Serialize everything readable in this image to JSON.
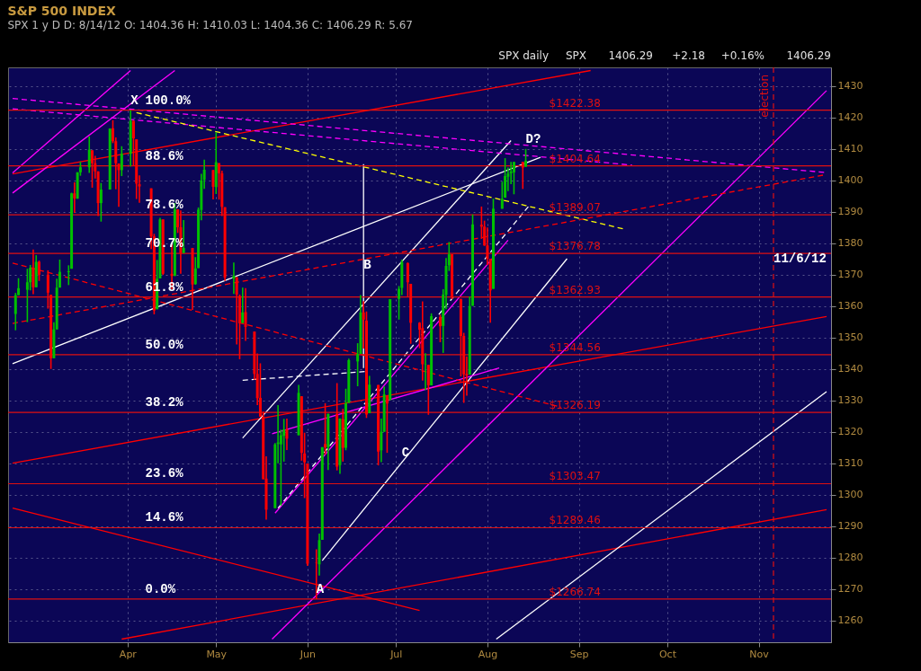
{
  "chart_data": {
    "type": "candlestick",
    "title": "S&P 500 INDEX",
    "subtitle": "SPX 1 y D   D: 8/14/12   O: 1404.36   H: 1410.03   L: 1404.36   C: 1406.29   R: 5.67",
    "x": [
      "--02-23",
      "--02-24",
      "--02-27",
      "--02-28",
      "--02-29",
      "--03-01",
      "--03-02",
      "--03-05",
      "--03-06",
      "--03-07",
      "--03-08",
      "--03-09",
      "--03-12",
      "--03-13",
      "--03-14",
      "--03-15",
      "--03-16",
      "--03-19",
      "--03-20",
      "--03-21",
      "--03-22",
      "--03-23",
      "--03-26",
      "--03-27",
      "--03-28",
      "--03-29",
      "--03-30",
      "--04-02",
      "--04-03",
      "--04-04",
      "--04-05",
      "--04-09",
      "--04-10",
      "--04-11",
      "--04-12",
      "--04-13",
      "--04-16",
      "--04-17",
      "--04-18",
      "--04-19",
      "--04-20",
      "--04-23",
      "--04-24",
      "--04-25",
      "--04-26",
      "--04-27",
      "--04-30",
      "--05-01",
      "--05-02",
      "--05-03",
      "--05-04",
      "--05-07",
      "--05-08",
      "--05-09",
      "--05-10",
      "--05-11",
      "--05-14",
      "--05-15",
      "--05-16",
      "--05-17",
      "--05-18",
      "--05-21",
      "--05-22",
      "--05-23",
      "--05-24",
      "--05-25",
      "--05-29",
      "--05-30",
      "--05-31",
      "--06-01",
      "--06-04",
      "--06-05",
      "--06-06",
      "--06-07",
      "--06-08",
      "--06-11",
      "--06-12",
      "--06-13",
      "--06-14",
      "--06-15",
      "--06-18",
      "--06-19",
      "--06-20",
      "--06-21",
      "--06-22",
      "--06-25",
      "--06-26",
      "--06-27",
      "--06-28",
      "--06-29",
      "--07-02",
      "--07-03",
      "--07-05",
      "--07-06",
      "--07-09",
      "--07-10",
      "--07-11",
      "--07-12",
      "--07-13",
      "--07-16",
      "--07-17",
      "--07-18",
      "--07-19",
      "--07-20",
      "--07-23",
      "--07-24",
      "--07-25",
      "--07-26",
      "--07-27",
      "--07-30",
      "--07-31",
      "--08-01",
      "--08-02",
      "--08-03",
      "--08-06",
      "--08-07",
      "--08-08",
      "--08-09",
      "--08-10",
      "--08-13",
      "--08-14"
    ],
    "ohlc": [
      [
        1357.5,
        1364.2,
        1352.3,
        1363.5
      ],
      [
        1363.5,
        1368.9,
        1363.5,
        1365.7
      ],
      [
        1365.2,
        1371.9,
        1354.9,
        1367.6
      ],
      [
        1367.6,
        1373.1,
        1365.0,
        1372.2
      ],
      [
        1372.2,
        1378.0,
        1363.8,
        1366.0
      ],
      [
        1366.0,
        1376.2,
        1366.0,
        1374.1
      ],
      [
        1374.1,
        1374.5,
        1368.0,
        1370.0
      ],
      [
        1370.0,
        1371.4,
        1359.2,
        1364.3
      ],
      [
        1363.6,
        1363.6,
        1340.0,
        1343.4
      ],
      [
        1343.4,
        1354.9,
        1343.4,
        1352.6
      ],
      [
        1352.6,
        1368.7,
        1352.6,
        1365.9
      ],
      [
        1365.9,
        1374.8,
        1365.9,
        1370.9
      ],
      [
        1370.8,
        1373.0,
        1366.7,
        1371.1
      ],
      [
        1371.9,
        1396.1,
        1371.9,
        1395.9
      ],
      [
        1395.9,
        1399.4,
        1389.7,
        1394.3
      ],
      [
        1394.2,
        1402.6,
        1394.2,
        1402.6
      ],
      [
        1402.6,
        1405.9,
        1401.5,
        1404.2
      ],
      [
        1404.2,
        1414.0,
        1402.4,
        1409.8
      ],
      [
        1409.6,
        1409.6,
        1397.7,
        1405.5
      ],
      [
        1405.5,
        1407.8,
        1400.6,
        1402.9
      ],
      [
        1402.9,
        1402.9,
        1388.7,
        1392.8
      ],
      [
        1392.8,
        1399.2,
        1386.9,
        1397.1
      ],
      [
        1397.1,
        1416.6,
        1397.1,
        1416.5
      ],
      [
        1416.6,
        1419.2,
        1411.9,
        1412.5
      ],
      [
        1412.5,
        1413.7,
        1397.2,
        1405.5
      ],
      [
        1405.4,
        1405.4,
        1391.6,
        1403.3
      ],
      [
        1403.3,
        1410.9,
        1401.4,
        1408.5
      ],
      [
        1408.5,
        1422.38,
        1404.5,
        1419.0
      ],
      [
        1419.0,
        1419.0,
        1404.6,
        1413.4
      ],
      [
        1413.1,
        1413.1,
        1394.1,
        1399.0
      ],
      [
        1398.8,
        1401.6,
        1392.9,
        1398.1
      ],
      [
        1397.5,
        1397.5,
        1378.2,
        1382.2
      ],
      [
        1382.2,
        1383.0,
        1357.4,
        1358.6
      ],
      [
        1359.0,
        1374.7,
        1359.0,
        1368.7
      ],
      [
        1368.8,
        1388.1,
        1368.8,
        1387.6
      ],
      [
        1387.6,
        1387.6,
        1369.9,
        1370.3
      ],
      [
        1370.3,
        1379.7,
        1365.4,
        1369.6
      ],
      [
        1369.6,
        1392.8,
        1369.6,
        1390.8
      ],
      [
        1390.8,
        1390.8,
        1383.3,
        1385.1
      ],
      [
        1385.1,
        1390.5,
        1370.3,
        1376.9
      ],
      [
        1376.9,
        1387.4,
        1376.9,
        1378.5
      ],
      [
        1378.5,
        1378.5,
        1358.8,
        1366.9
      ],
      [
        1367.0,
        1375.6,
        1366.8,
        1372.0
      ],
      [
        1372.1,
        1391.4,
        1372.1,
        1390.7
      ],
      [
        1390.6,
        1402.1,
        1387.3,
        1400.0
      ],
      [
        1400.2,
        1406.6,
        1397.3,
        1403.4
      ],
      [
        1403.3,
        1403.3,
        1394.0,
        1398.0
      ],
      [
        1397.9,
        1415.3,
        1395.7,
        1405.8
      ],
      [
        1405.5,
        1405.5,
        1393.9,
        1402.3
      ],
      [
        1402.3,
        1403.1,
        1388.7,
        1391.6
      ],
      [
        1391.5,
        1391.5,
        1368.0,
        1369.1
      ],
      [
        1368.8,
        1373.9,
        1363.9,
        1369.6
      ],
      [
        1369.2,
        1369.2,
        1347.8,
        1363.7
      ],
      [
        1363.2,
        1363.7,
        1343.1,
        1354.6
      ],
      [
        1354.6,
        1365.9,
        1354.6,
        1358.0
      ],
      [
        1358.1,
        1365.7,
        1348.9,
        1353.4
      ],
      [
        1351.9,
        1351.9,
        1336.6,
        1338.4
      ],
      [
        1338.4,
        1344.9,
        1328.5,
        1330.7
      ],
      [
        1330.8,
        1341.8,
        1324.8,
        1324.8
      ],
      [
        1324.8,
        1326.4,
        1304.9,
        1304.9
      ],
      [
        1305.1,
        1312.2,
        1292.0,
        1295.2
      ],
      [
        1295.7,
        1316.4,
        1295.7,
        1316.0
      ],
      [
        1316.1,
        1328.5,
        1310.0,
        1316.6
      ],
      [
        1316.0,
        1320.7,
        1296.5,
        1318.9
      ],
      [
        1318.7,
        1324.1,
        1310.5,
        1320.7
      ],
      [
        1320.8,
        1324.2,
        1314.2,
        1317.8
      ],
      [
        1318.9,
        1334.9,
        1318.9,
        1332.4
      ],
      [
        1331.3,
        1331.3,
        1310.8,
        1313.3
      ],
      [
        1313.1,
        1319.7,
        1298.9,
        1310.3
      ],
      [
        1309.9,
        1309.9,
        1277.3,
        1278.0
      ],
      [
        1278.3,
        1282.6,
        1266.74,
        1278.2
      ],
      [
        1277.8,
        1287.6,
        1274.2,
        1285.5
      ],
      [
        1285.6,
        1315.1,
        1285.6,
        1315.1
      ],
      [
        1316.1,
        1329.1,
        1312.7,
        1315.0
      ],
      [
        1315.0,
        1325.8,
        1307.8,
        1325.7
      ],
      [
        1325.7,
        1335.5,
        1307.7,
        1308.9
      ],
      [
        1309.4,
        1324.3,
        1306.6,
        1324.2
      ],
      [
        1324.0,
        1327.3,
        1310.5,
        1314.9
      ],
      [
        1314.9,
        1333.7,
        1314.1,
        1329.1
      ],
      [
        1329.2,
        1343.3,
        1329.2,
        1342.8
      ],
      [
        1342.4,
        1348.2,
        1334.5,
        1344.8
      ],
      [
        1344.8,
        1363.5,
        1344.8,
        1358.0
      ],
      [
        1358.0,
        1361.6,
        1346.5,
        1355.7
      ],
      [
        1355.4,
        1358.3,
        1324.4,
        1325.5
      ],
      [
        1325.9,
        1337.8,
        1325.9,
        1335.0
      ],
      [
        1334.9,
        1334.9,
        1309.3,
        1313.7
      ],
      [
        1314.1,
        1324.2,
        1310.3,
        1320.0
      ],
      [
        1320.0,
        1334.4,
        1320.0,
        1331.9
      ],
      [
        1331.5,
        1331.5,
        1313.3,
        1329.0
      ],
      [
        1330.1,
        1362.2,
        1330.1,
        1362.2
      ],
      [
        1362.3,
        1366.4,
        1355.7,
        1365.5
      ],
      [
        1365.8,
        1374.8,
        1363.5,
        1374.0
      ],
      [
        1373.7,
        1373.9,
        1363.0,
        1367.6
      ],
      [
        1367.1,
        1367.1,
        1348.0,
        1354.7
      ],
      [
        1354.7,
        1354.9,
        1346.6,
        1352.5
      ],
      [
        1353.0,
        1361.5,
        1336.3,
        1341.5
      ],
      [
        1341.4,
        1345.0,
        1333.3,
        1341.5
      ],
      [
        1341.3,
        1341.3,
        1325.4,
        1334.8
      ],
      [
        1334.8,
        1357.7,
        1334.8,
        1356.8
      ],
      [
        1356.5,
        1357.3,
        1348.5,
        1353.6
      ],
      [
        1353.7,
        1365.4,
        1345.1,
        1363.7
      ],
      [
        1363.6,
        1375.3,
        1359.0,
        1372.8
      ],
      [
        1373.0,
        1380.4,
        1371.2,
        1376.5
      ],
      [
        1376.5,
        1376.5,
        1362.2,
        1362.7
      ],
      [
        1362.3,
        1362.3,
        1337.6,
        1350.5
      ],
      [
        1350.5,
        1351.5,
        1329.2,
        1338.3
      ],
      [
        1338.4,
        1344.0,
        1331.5,
        1337.9
      ],
      [
        1338.2,
        1363.1,
        1338.2,
        1360.0
      ],
      [
        1360.1,
        1389.2,
        1360.1,
        1386.0
      ],
      [
        1385.9,
        1391.7,
        1381.4,
        1385.3
      ],
      [
        1385.3,
        1387.2,
        1379.2,
        1379.3
      ],
      [
        1379.3,
        1385.0,
        1373.1,
        1375.1
      ],
      [
        1375.1,
        1375.1,
        1354.7,
        1365.0
      ],
      [
        1365.5,
        1394.2,
        1365.5,
        1391.0
      ],
      [
        1391.0,
        1399.6,
        1391.0,
        1394.2
      ],
      [
        1394.5,
        1407.1,
        1394.5,
        1401.4
      ],
      [
        1401.2,
        1404.1,
        1396.6,
        1402.2
      ],
      [
        1402.3,
        1405.9,
        1398.8,
        1402.8
      ],
      [
        1402.6,
        1405.9,
        1395.6,
        1405.9
      ],
      [
        1405.9,
        1405.9,
        1397.3,
        1404.1
      ],
      [
        1404.36,
        1410.03,
        1404.36,
        1406.29
      ]
    ],
    "colors": [
      "#00c000",
      "#00c000",
      "#00c000",
      "#00c000",
      "#ff0000",
      "#00c000",
      "#ff0000",
      "#ff0000",
      "#ff0000",
      "#00c000",
      "#00c000",
      "#00c000",
      "#00c000",
      "#00c000",
      "#ff0000",
      "#00c000",
      "#00c000",
      "#00c000",
      "#ff0000",
      "#ff0000",
      "#ff0000",
      "#00c000",
      "#00c000",
      "#ff0000",
      "#ff0000",
      "#ff0000",
      "#00c000",
      "#00c000",
      "#ff0000",
      "#ff0000",
      "#ff0000",
      "#ff0000",
      "#ff0000",
      "#00c000",
      "#00c000",
      "#ff0000",
      "#ff0000",
      "#00c000",
      "#ff0000",
      "#ff0000",
      "#00c000",
      "#ff0000",
      "#00c000",
      "#00c000",
      "#00c000",
      "#00c000",
      "#ff0000",
      "#00c000",
      "#ff0000",
      "#ff0000",
      "#ff0000",
      "#00c000",
      "#ff0000",
      "#ff0000",
      "#00c000",
      "#ff0000",
      "#ff0000",
      "#ff0000",
      "#ff0000",
      "#ff0000",
      "#ff0000",
      "#00c000",
      "#00c000",
      "#00c000",
      "#00c000",
      "#ff0000",
      "#00c000",
      "#ff0000",
      "#ff0000",
      "#ff0000",
      "#ff0000",
      "#00c000",
      "#00c000",
      "#ff0000",
      "#00c000",
      "#ff0000",
      "#00c000",
      "#ff0000",
      "#00c000",
      "#00c000",
      "#00c000",
      "#00c000",
      "#ff0000",
      "#ff0000",
      "#00c000",
      "#ff0000",
      "#00c000",
      "#00c000",
      "#ff0000",
      "#00c000",
      "#00c000",
      "#00c000",
      "#ff0000",
      "#ff0000",
      "#ff0000",
      "#ff0000",
      "#00c000",
      "#ff0000",
      "#00c000",
      "#ff0000",
      "#00c000",
      "#00c000",
      "#00c000",
      "#ff0000",
      "#ff0000",
      "#ff0000",
      "#ff0000",
      "#00c000",
      "#00c000",
      "#ff0000",
      "#ff0000",
      "#ff0000",
      "#ff0000",
      "#00c000",
      "#00c000",
      "#00c000",
      "#00c000",
      "#00c000",
      "#00c000",
      "#ff0000",
      "#00c000"
    ],
    "series": [
      {
        "type": "line",
        "color": "#ff00ff",
        "line_style": "dashed",
        "x": [
          "--02-22",
          "--11-24"
        ],
        "values": [
          1426.1,
          1402.5
        ]
      },
      {
        "type": "line",
        "color": "#ff00ff",
        "line_style": "dashed",
        "x": [
          "--02-22",
          "--09-19"
        ],
        "values": [
          1422.8,
          1404.9
        ]
      },
      {
        "type": "line",
        "color": "#ffff00",
        "line_style": "dashed",
        "x": [
          "--04-04",
          "--09-16"
        ],
        "values": [
          1421.6,
          1384.6
        ]
      },
      {
        "type": "line",
        "color": "#ff0000",
        "line_style": "dashed",
        "x": [
          "--02-22",
          "--11-24"
        ],
        "values": [
          1354.5,
          1401.9
        ]
      },
      {
        "type": "line",
        "color": "#ff0000",
        "line_style": "dashed",
        "x": [
          "--02-22",
          "--08-26"
        ],
        "values": [
          1373.7,
          1327.8
        ]
      },
      {
        "type": "line",
        "color": "#ff0000",
        "line_style": "solid",
        "x": [
          "--02-22",
          "--09-05"
        ],
        "values": [
          1402.1,
          1435
        ]
      },
      {
        "type": "line",
        "color": "#ff0000",
        "line_style": "solid",
        "x": [
          "--02-22",
          "--11-24"
        ],
        "values": [
          1310,
          1356.7
        ]
      },
      {
        "type": "line",
        "color": "#ff0000",
        "line_style": "solid",
        "x": [
          "--03-30",
          "--11-24"
        ],
        "values": [
          1254,
          1295.2
        ]
      },
      {
        "type": "line",
        "color": "#ff0000",
        "line_style": "solid",
        "x": [
          "--02-22",
          "--07-09"
        ],
        "values": [
          1295.7,
          1263.1
        ]
      },
      {
        "type": "line",
        "color": "#ffffff",
        "line_style": "solid",
        "x": [
          "--02-22",
          "--08-19"
        ],
        "values": [
          1341.7,
          1407.4
        ]
      },
      {
        "type": "line",
        "color": "#ffffff",
        "line_style": "solid",
        "x": [
          "--05-10",
          "--08-09"
        ],
        "values": [
          1318,
          1412.7
        ]
      },
      {
        "type": "line",
        "color": "#ffffff",
        "line_style": "solid",
        "x": [
          "--06-06",
          "--08-28"
        ],
        "values": [
          1279,
          1375.1
        ]
      },
      {
        "type": "line",
        "color": "#ffffff",
        "line_style": "solid",
        "x": [
          "--08-04",
          "--11-24"
        ],
        "values": [
          1254,
          1332.8
        ]
      },
      {
        "type": "line",
        "color": "#ffffff",
        "line_style": "dashed",
        "x": [
          "--05-22",
          "--08-15"
        ],
        "values": [
          1295.7,
          1391.8
        ]
      },
      {
        "type": "line",
        "color": "#ffffff",
        "line_style": "dashed",
        "x": [
          "--05-10",
          "--06-21"
        ],
        "values": [
          1336.4,
          1339.2
        ]
      },
      {
        "type": "line",
        "color": "#ffffff",
        "line_style": "solid",
        "x": [
          "--06-20",
          "--06-20"
        ],
        "values": [
          1340.3,
          1405.2
        ]
      },
      {
        "type": "line",
        "color": "#ff00ff",
        "line_style": "solid",
        "x": [
          "--05-21",
          "--08-08"
        ],
        "values": [
          1294.1,
          1381
        ]
      },
      {
        "type": "line",
        "color": "#ff00ff",
        "line_style": "solid",
        "x": [
          "--05-20",
          "--08-05"
        ],
        "values": [
          1319.4,
          1340.3
        ]
      },
      {
        "type": "line",
        "color": "#ff00ff",
        "line_style": "solid",
        "x": [
          "--05-20",
          "--11-24"
        ],
        "values": [
          1254,
          1428.6
        ]
      },
      {
        "type": "line",
        "color": "#ff00ff",
        "line_style": "solid",
        "x": [
          "--02-22",
          "--04-02"
        ],
        "values": [
          1402.4,
          1435
        ]
      },
      {
        "type": "line",
        "color": "#ff00ff",
        "line_style": "solid",
        "x": [
          "--02-22",
          "--04-17"
        ],
        "values": [
          1396,
          1435
        ]
      }
    ],
    "ref_lines": [
      {
        "axis": "y",
        "value": 1422.38,
        "label": "$1422.38",
        "color": "#e01010"
      },
      {
        "axis": "y",
        "value": 1404.64,
        "label": "$1404.64",
        "color": "#e01010"
      },
      {
        "axis": "y",
        "value": 1389.07,
        "label": "$1389.07",
        "color": "#e01010"
      },
      {
        "axis": "y",
        "value": 1376.78,
        "label": "$1376.78",
        "color": "#e01010"
      },
      {
        "axis": "y",
        "value": 1362.93,
        "label": "$1362.93",
        "color": "#e01010"
      },
      {
        "axis": "y",
        "value": 1344.56,
        "label": "$1344.56",
        "color": "#e01010"
      },
      {
        "axis": "y",
        "value": 1326.19,
        "label": "$1326.19",
        "color": "#e01010"
      },
      {
        "axis": "y",
        "value": 1303.47,
        "label": "$1303.47",
        "color": "#e01010"
      },
      {
        "axis": "y",
        "value": 1289.46,
        "label": "$1289.46",
        "color": "#e01010"
      },
      {
        "axis": "y",
        "value": 1266.74,
        "label": "$1266.74",
        "color": "#e01010"
      },
      {
        "axis": "x",
        "value": "--11-06",
        "label": "election",
        "color": "#e01010",
        "line_style": "dashed"
      }
    ],
    "annotations": [
      {
        "text": "100.0%",
        "x": "--04-07",
        "y": 1422.38
      },
      {
        "text": "88.6%",
        "x": "--04-07",
        "y": 1404.64
      },
      {
        "text": "78.6%",
        "x": "--04-07",
        "y": 1389.07
      },
      {
        "text": "70.7%",
        "x": "--04-07",
        "y": 1376.78
      },
      {
        "text": "61.8%",
        "x": "--04-07",
        "y": 1362.93
      },
      {
        "text": "50.0%",
        "x": "--04-07",
        "y": 1344.56
      },
      {
        "text": "38.2%",
        "x": "--04-07",
        "y": 1326.19
      },
      {
        "text": "23.6%",
        "x": "--04-07",
        "y": 1303.47
      },
      {
        "text": "14.6%",
        "x": "--04-07",
        "y": 1289.46
      },
      {
        "text": "0.0%",
        "x": "--04-07",
        "y": 1266.74
      },
      {
        "text": "X",
        "x": "--04-02",
        "y": 1422.38
      },
      {
        "text": "A",
        "x": "--06-04",
        "y": 1266.74
      },
      {
        "text": "B",
        "x": "--06-20",
        "y": 1370
      },
      {
        "text": "C",
        "x": "--07-03",
        "y": 1310.2
      },
      {
        "text": "D?",
        "x": "--08-14",
        "y": 1410.03
      },
      {
        "text": "11/6/12",
        "x": "--11-06",
        "y": 1372
      },
      "SPX daily",
      "SPX",
      "1406.29",
      "+2.18",
      "+0.16%",
      "1406.29"
    ],
    "xlim": [
      "--02-22",
      "--11-24"
    ],
    "xticks": [
      {
        "value": "--04-01",
        "label": "Apr"
      },
      {
        "value": "--05-01",
        "label": "May"
      },
      {
        "value": "--06-01",
        "label": "Jun"
      },
      {
        "value": "--07-01",
        "label": "Jul"
      },
      {
        "value": "--08-01",
        "label": "Aug"
      },
      {
        "value": "--09-01",
        "label": "Sep"
      },
      {
        "value": "--10-01",
        "label": "Oct"
      },
      {
        "value": "--11-01",
        "label": "Nov"
      }
    ],
    "ylim": [
      1253,
      1436
    ],
    "yticks": [
      1260,
      1270,
      1280,
      1290,
      1300,
      1310,
      1320,
      1330,
      1340,
      1350,
      1360,
      1370,
      1380,
      1390,
      1400,
      1410,
      1420,
      1430
    ],
    "grid": true
  }
}
